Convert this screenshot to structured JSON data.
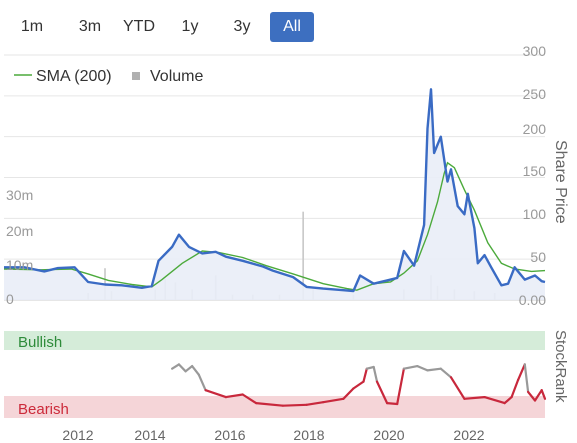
{
  "range_buttons": [
    {
      "label": "1m",
      "active": false
    },
    {
      "label": "3m",
      "active": false
    },
    {
      "label": "YTD",
      "active": false
    },
    {
      "label": "1y",
      "active": false
    },
    {
      "label": "3y",
      "active": false
    },
    {
      "label": "All",
      "active": true
    }
  ],
  "colors": {
    "price": "#3a6bc4",
    "sma": "#4caa3c",
    "volume": "#c8c8c8",
    "bullish_band": "#d5ecd9",
    "bearish_band": "#f5d5d8",
    "bullish_text": "#2e8b3a",
    "bearish_text": "#cc2a3a",
    "rank_bearish": "#c8283c",
    "rank_neutral": "#999999",
    "active_button": "#3d6fc0"
  },
  "chart_data": [
    {
      "type": "line",
      "title": "",
      "legend": {
        "placement": "top-left",
        "entries": [
          "SMA (200)",
          "Volume"
        ]
      },
      "x_axis": {
        "type": "date",
        "range": [
          "2010-07-01",
          "2023-12-01"
        ],
        "tick_labels": [
          "2012",
          "2014",
          "2016",
          "2018",
          "2020",
          "2022"
        ]
      },
      "y_axis_right": {
        "label": "Share Price",
        "range": [
          0,
          300
        ],
        "tick_labels": [
          "0.00",
          "50",
          "100",
          "150",
          "200",
          "250",
          "300"
        ]
      },
      "y_axis_left": {
        "label": "",
        "range": [
          0,
          30000000
        ],
        "tick_labels": [
          "0",
          "10m",
          "20m",
          "30m"
        ]
      },
      "grid": true,
      "series": [
        {
          "name": "Share Price",
          "points": [
            [
              "2010-07-01",
              40
            ],
            [
              "2011-01-01",
              40
            ],
            [
              "2011-07-01",
              35
            ],
            [
              "2011-11-01",
              39
            ],
            [
              "2012-04-01",
              40
            ],
            [
              "2012-08-01",
              22
            ],
            [
              "2013-01-01",
              19
            ],
            [
              "2013-06-01",
              18
            ],
            [
              "2013-12-01",
              15
            ],
            [
              "2014-03-01",
              17
            ],
            [
              "2014-05-01",
              48
            ],
            [
              "2014-09-01",
              65
            ],
            [
              "2014-11-01",
              80
            ],
            [
              "2015-02-01",
              65
            ],
            [
              "2015-06-01",
              57
            ],
            [
              "2015-10-01",
              59
            ],
            [
              "2016-01-01",
              53
            ],
            [
              "2016-06-01",
              48
            ],
            [
              "2016-12-01",
              41
            ],
            [
              "2017-03-01",
              36
            ],
            [
              "2017-09-01",
              28
            ],
            [
              "2018-01-01",
              16
            ],
            [
              "2018-06-01",
              14
            ],
            [
              "2018-12-01",
              12
            ],
            [
              "2019-03-01",
              11
            ],
            [
              "2019-05-01",
              30
            ],
            [
              "2019-09-01",
              20
            ],
            [
              "2020-01-01",
              24
            ],
            [
              "2020-04-01",
              27
            ],
            [
              "2020-06-01",
              60
            ],
            [
              "2020-09-01",
              42
            ],
            [
              "2020-12-01",
              92
            ],
            [
              "2021-01-01",
              210
            ],
            [
              "2021-02-01",
              258
            ],
            [
              "2021-03-01",
              180
            ],
            [
              "2021-05-01",
              200
            ],
            [
              "2021-07-01",
              145
            ],
            [
              "2021-08-01",
              160
            ],
            [
              "2021-10-01",
              115
            ],
            [
              "2021-12-01",
              105
            ],
            [
              "2022-01-01",
              130
            ],
            [
              "2022-03-01",
              88
            ],
            [
              "2022-04-01",
              45
            ],
            [
              "2022-06-01",
              55
            ],
            [
              "2022-08-01",
              40
            ],
            [
              "2022-11-01",
              18
            ],
            [
              "2023-01-01",
              20
            ],
            [
              "2023-03-01",
              40
            ],
            [
              "2023-06-01",
              25
            ],
            [
              "2023-09-01",
              30
            ],
            [
              "2023-11-01",
              23
            ],
            [
              "2023-12-01",
              22
            ]
          ]
        },
        {
          "name": "SMA (200)",
          "points": [
            [
              "2010-07-01",
              38
            ],
            [
              "2011-06-01",
              37
            ],
            [
              "2012-03-01",
              38
            ],
            [
              "2012-08-01",
              32
            ],
            [
              "2013-02-01",
              24
            ],
            [
              "2013-09-01",
              19
            ],
            [
              "2014-03-01",
              16
            ],
            [
              "2014-06-01",
              25
            ],
            [
              "2014-12-01",
              45
            ],
            [
              "2015-06-01",
              60
            ],
            [
              "2015-11-01",
              58
            ],
            [
              "2016-06-01",
              52
            ],
            [
              "2017-01-01",
              42
            ],
            [
              "2017-09-01",
              32
            ],
            [
              "2018-06-01",
              20
            ],
            [
              "2019-01-01",
              14
            ],
            [
              "2019-04-01",
              12
            ],
            [
              "2019-09-01",
              20
            ],
            [
              "2020-02-01",
              22
            ],
            [
              "2020-06-01",
              33
            ],
            [
              "2020-10-01",
              48
            ],
            [
              "2021-01-01",
              80
            ],
            [
              "2021-04-01",
              120
            ],
            [
              "2021-06-01",
              155
            ],
            [
              "2021-07-01",
              168
            ],
            [
              "2021-09-01",
              162
            ],
            [
              "2021-12-01",
              135
            ],
            [
              "2022-03-01",
              110
            ],
            [
              "2022-07-01",
              70
            ],
            [
              "2022-11-01",
              45
            ],
            [
              "2023-03-01",
              38
            ],
            [
              "2023-08-01",
              35
            ],
            [
              "2023-12-01",
              36
            ]
          ]
        },
        {
          "name": "Volume",
          "type": "bar",
          "points": [
            [
              "2012-08-01",
              2000000
            ],
            [
              "2013-01-01",
              9000000
            ],
            [
              "2013-03-01",
              2500000
            ],
            [
              "2014-04-01",
              3000000
            ],
            [
              "2014-07-01",
              6000000
            ],
            [
              "2014-10-01",
              5000000
            ],
            [
              "2015-03-01",
              3000000
            ],
            [
              "2015-10-01",
              7000000
            ],
            [
              "2016-03-01",
              1500000
            ],
            [
              "2016-09-01",
              1500000
            ],
            [
              "2017-05-01",
              1500000
            ],
            [
              "2017-12-01",
              25000000
            ],
            [
              "2018-03-01",
              3000000
            ],
            [
              "2019-03-01",
              1500000
            ],
            [
              "2020-06-01",
              3000000
            ],
            [
              "2021-02-01",
              7000000
            ],
            [
              "2021-04-01",
              4000000
            ],
            [
              "2021-09-01",
              3000000
            ],
            [
              "2022-03-01",
              2500000
            ],
            [
              "2022-09-01",
              2000000
            ],
            [
              "2023-05-01",
              1500000
            ]
          ]
        }
      ]
    },
    {
      "type": "line",
      "title": "",
      "y_axis_right": {
        "label": "StockRank"
      },
      "bands": [
        {
          "label": "Bullish"
        },
        {
          "label": "Bearish"
        }
      ],
      "x_axis": {
        "type": "date",
        "range": [
          "2010-07-01",
          "2023-12-01"
        ]
      },
      "series": [
        {
          "name": "StockRank",
          "points": [
            [
              "2014-09-01",
              0.55,
              "neutral"
            ],
            [
              "2014-11-01",
              0.6,
              "neutral"
            ],
            [
              "2015-01-01",
              0.52,
              "neutral"
            ],
            [
              "2015-03-01",
              0.58,
              "neutral"
            ],
            [
              "2015-05-01",
              0.48,
              "neutral"
            ],
            [
              "2015-07-01",
              0.3,
              "bearish"
            ],
            [
              "2016-01-01",
              0.22,
              "bearish"
            ],
            [
              "2016-06-01",
              0.25,
              "bearish"
            ],
            [
              "2016-10-01",
              0.15,
              "bearish"
            ],
            [
              "2017-06-01",
              0.12,
              "bearish"
            ],
            [
              "2018-01-01",
              0.13,
              "bearish"
            ],
            [
              "2018-06-01",
              0.16,
              "bearish"
            ],
            [
              "2018-12-01",
              0.2,
              "bearish"
            ],
            [
              "2019-03-01",
              0.32,
              "bearish"
            ],
            [
              "2019-06-01",
              0.4,
              "bearish"
            ],
            [
              "2019-07-01",
              0.55,
              "neutral"
            ],
            [
              "2019-09-01",
              0.57,
              "neutral"
            ],
            [
              "2019-10-01",
              0.4,
              "bearish"
            ],
            [
              "2020-01-01",
              0.15,
              "bearish"
            ],
            [
              "2020-04-01",
              0.14,
              "bearish"
            ],
            [
              "2020-06-01",
              0.55,
              "neutral"
            ],
            [
              "2020-10-01",
              0.58,
              "neutral"
            ],
            [
              "2021-01-01",
              0.53,
              "neutral"
            ],
            [
              "2021-05-01",
              0.55,
              "neutral"
            ],
            [
              "2021-08-01",
              0.45,
              "bearish"
            ],
            [
              "2021-12-01",
              0.2,
              "bearish"
            ],
            [
              "2022-06-01",
              0.22,
              "bearish"
            ],
            [
              "2022-12-01",
              0.15,
              "bearish"
            ],
            [
              "2023-02-01",
              0.22,
              "bearish"
            ],
            [
              "2023-04-01",
              0.42,
              "bearish"
            ],
            [
              "2023-06-01",
              0.6,
              "neutral"
            ],
            [
              "2023-07-01",
              0.28,
              "bearish"
            ],
            [
              "2023-09-01",
              0.18,
              "bearish"
            ],
            [
              "2023-11-01",
              0.3,
              "bearish"
            ],
            [
              "2023-12-01",
              0.2,
              "bearish"
            ]
          ]
        }
      ]
    }
  ]
}
